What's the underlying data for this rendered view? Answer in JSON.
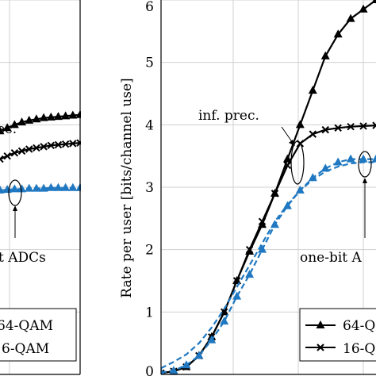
{
  "chart_data": [
    {
      "type": "line",
      "panel": "left",
      "xlabel": "",
      "ylabel": "",
      "annotations": {
        "inf_prec": "rec.",
        "one_bit": "t ADCs"
      },
      "legend": {
        "placement": "bottom-right",
        "entries": [
          "64-QAM",
          "6-QAM"
        ]
      },
      "series": [
        {
          "name": "64-QAM inf. prec.",
          "marker": "triangle",
          "style": "solid",
          "color": "#000000",
          "x": [
            0.0,
            0.08,
            0.16,
            0.24,
            0.32,
            0.4,
            0.48,
            0.56,
            0.64,
            0.72,
            0.8,
            0.88
          ],
          "y": [
            3.9,
            3.95,
            4.0,
            4.04,
            4.07,
            4.09,
            4.11,
            4.12,
            4.13,
            4.14,
            4.15,
            4.16
          ]
        },
        {
          "name": "16-QAM inf. prec.",
          "marker": "x",
          "style": "solid",
          "color": "#000000",
          "x": [
            0.0,
            0.08,
            0.16,
            0.24,
            0.32,
            0.4,
            0.48,
            0.56,
            0.64,
            0.72,
            0.8,
            0.88
          ],
          "y": [
            3.45,
            3.5,
            3.55,
            3.58,
            3.61,
            3.63,
            3.65,
            3.67,
            3.68,
            3.69,
            3.7,
            3.71
          ]
        },
        {
          "name": "64-QAM one-bit",
          "marker": "triangle",
          "style": "dashed",
          "color": "#1f78c1",
          "x": [
            0.0,
            0.08,
            0.16,
            0.24,
            0.32,
            0.4,
            0.48,
            0.56,
            0.64,
            0.72,
            0.8,
            0.88
          ],
          "y": [
            2.95,
            2.96,
            2.97,
            2.97,
            2.98,
            2.98,
            2.98,
            2.99,
            2.99,
            2.99,
            2.99,
            2.99
          ]
        },
        {
          "name": "16-QAM one-bit",
          "marker": "none",
          "style": "dashed",
          "color": "#1f78c1",
          "x": [
            0.0,
            0.08,
            0.16,
            0.24,
            0.32,
            0.4,
            0.48,
            0.56,
            0.64,
            0.72,
            0.8,
            0.88
          ],
          "y": [
            2.92,
            2.93,
            2.94,
            2.95,
            2.95,
            2.96,
            2.96,
            2.96,
            2.96,
            2.96,
            2.96,
            2.96
          ]
        }
      ]
    },
    {
      "type": "line",
      "panel": "right",
      "xlabel": "",
      "ylabel": "Rate per user [bits/channel use]",
      "ylim": [
        0,
        6
      ],
      "yticks": [
        "0",
        "1",
        "2",
        "3",
        "4",
        "5",
        "6"
      ],
      "annotations": {
        "inf_prec": "inf. prec.",
        "one_bit": "one-bit A"
      },
      "legend": {
        "placement": "bottom-right",
        "entries": [
          "64-Q",
          "16-Q"
        ]
      },
      "series": [
        {
          "name": "64-QAM inf. prec.",
          "marker": "triangle",
          "style": "solid",
          "color": "#000000",
          "x": [
            0.0,
            0.08,
            0.16,
            0.24,
            0.32,
            0.4,
            0.48,
            0.56,
            0.64,
            0.72,
            0.8,
            0.88,
            0.96,
            1.04,
            1.12,
            1.2,
            1.28,
            1.36
          ],
          "y": [
            0.02,
            0.05,
            0.12,
            0.3,
            0.6,
            1.0,
            1.5,
            1.97,
            2.4,
            2.9,
            3.45,
            4.0,
            4.55,
            5.1,
            5.45,
            5.7,
            5.85,
            6.0
          ]
        },
        {
          "name": "16-QAM inf. prec.",
          "marker": "x",
          "style": "solid",
          "color": "#000000",
          "x": [
            0.0,
            0.08,
            0.16,
            0.24,
            0.32,
            0.4,
            0.48,
            0.56,
            0.64,
            0.72,
            0.8,
            0.88,
            0.96,
            1.04,
            1.12,
            1.2,
            1.28,
            1.36
          ],
          "y": [
            0.02,
            0.05,
            0.12,
            0.3,
            0.6,
            1.0,
            1.5,
            2.0,
            2.45,
            2.9,
            3.35,
            3.7,
            3.85,
            3.92,
            3.95,
            3.97,
            3.98,
            3.99
          ]
        },
        {
          "name": "64-QAM one-bit",
          "marker": "triangle",
          "style": "dashed",
          "color": "#1f78c1",
          "x": [
            0.0,
            0.08,
            0.16,
            0.24,
            0.32,
            0.4,
            0.48,
            0.56,
            0.64,
            0.72,
            0.8,
            0.88,
            0.96,
            1.04,
            1.12,
            1.2,
            1.28,
            1.36
          ],
          "y": [
            0.03,
            0.06,
            0.15,
            0.3,
            0.55,
            0.85,
            1.25,
            1.6,
            2.0,
            2.4,
            2.7,
            2.95,
            3.15,
            3.3,
            3.4,
            3.45,
            3.45,
            3.45
          ]
        },
        {
          "name": "16-QAM one-bit",
          "marker": "none",
          "style": "dashed",
          "color": "#1f78c1",
          "x": [
            0.0,
            0.08,
            0.16,
            0.24,
            0.32,
            0.4,
            0.48,
            0.56,
            0.64,
            0.72,
            0.8,
            0.88,
            0.96,
            1.04,
            1.12,
            1.2,
            1.28,
            1.36
          ],
          "y": [
            0.1,
            0.2,
            0.32,
            0.5,
            0.75,
            1.05,
            1.4,
            1.75,
            2.1,
            2.45,
            2.72,
            2.95,
            3.12,
            3.25,
            3.33,
            3.38,
            3.4,
            3.4
          ]
        }
      ]
    }
  ]
}
